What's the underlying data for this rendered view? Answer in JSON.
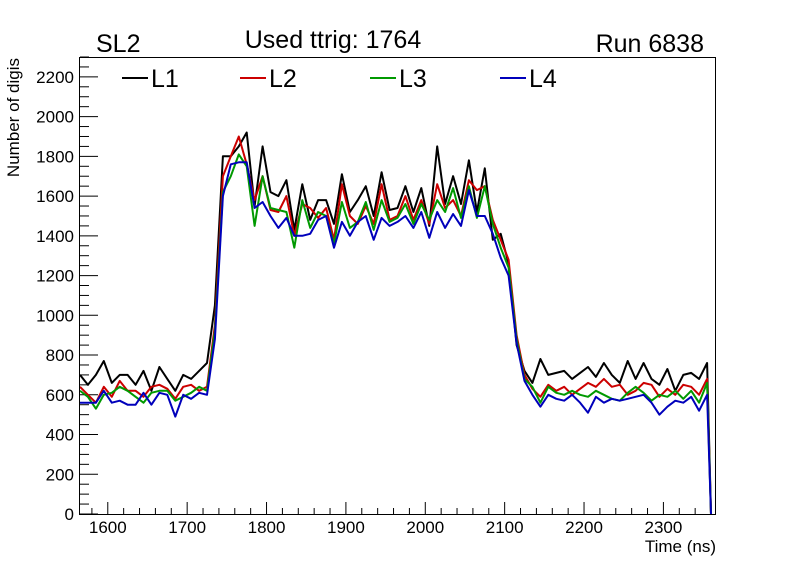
{
  "header": {
    "left": "SL2",
    "center": "Used ttrig: 1764",
    "right": "Run 6838"
  },
  "chart_data": {
    "type": "line",
    "xlabel": "Time (ns)",
    "ylabel": "Number of digis",
    "xlim": [
      1565,
      2365
    ],
    "ylim": [
      0,
      2300
    ],
    "xticks": [
      1600,
      1700,
      1800,
      1900,
      2000,
      2100,
      2200,
      2300
    ],
    "yticks": [
      0,
      200,
      400,
      600,
      800,
      1000,
      1200,
      1400,
      1600,
      1800,
      2000,
      2200
    ],
    "legend_position": "top-left",
    "grid": false,
    "x": [
      1565,
      1575,
      1585,
      1595,
      1605,
      1615,
      1625,
      1635,
      1645,
      1655,
      1665,
      1675,
      1685,
      1695,
      1705,
      1715,
      1725,
      1735,
      1745,
      1755,
      1765,
      1775,
      1785,
      1795,
      1805,
      1815,
      1825,
      1835,
      1845,
      1855,
      1865,
      1875,
      1885,
      1895,
      1905,
      1915,
      1925,
      1935,
      1945,
      1955,
      1965,
      1975,
      1985,
      1995,
      2005,
      2015,
      2025,
      2035,
      2045,
      2055,
      2065,
      2075,
      2085,
      2095,
      2105,
      2115,
      2125,
      2135,
      2145,
      2155,
      2165,
      2175,
      2185,
      2195,
      2205,
      2215,
      2225,
      2235,
      2245,
      2255,
      2265,
      2275,
      2285,
      2295,
      2305,
      2315,
      2325,
      2335,
      2345,
      2355,
      2360
    ],
    "series": [
      {
        "name": "L1",
        "color": "#000000",
        "values": [
          700,
          650,
          700,
          770,
          660,
          700,
          700,
          650,
          720,
          620,
          740,
          680,
          620,
          700,
          680,
          720,
          760,
          1050,
          1800,
          1800,
          1850,
          1920,
          1550,
          1850,
          1620,
          1600,
          1680,
          1430,
          1660,
          1480,
          1580,
          1580,
          1460,
          1710,
          1520,
          1580,
          1650,
          1500,
          1720,
          1530,
          1540,
          1650,
          1520,
          1640,
          1450,
          1850,
          1560,
          1700,
          1560,
          1780,
          1520,
          1740,
          1380,
          1410,
          1260,
          850,
          720,
          660,
          780,
          700,
          710,
          720,
          680,
          710,
          740,
          690,
          760,
          700,
          660,
          770,
          680,
          760,
          680,
          650,
          730,
          620,
          700,
          710,
          680,
          760,
          0
        ]
      },
      {
        "name": "L2",
        "color": "#cc0000",
        "values": [
          640,
          600,
          560,
          640,
          590,
          670,
          620,
          620,
          590,
          640,
          650,
          630,
          580,
          640,
          650,
          620,
          640,
          950,
          1700,
          1800,
          1900,
          1760,
          1580,
          1700,
          1530,
          1520,
          1600,
          1400,
          1560,
          1540,
          1490,
          1540,
          1380,
          1660,
          1500,
          1460,
          1550,
          1460,
          1660,
          1480,
          1500,
          1600,
          1480,
          1580,
          1460,
          1660,
          1540,
          1580,
          1500,
          1680,
          1630,
          1650,
          1480,
          1380,
          1280,
          900,
          700,
          630,
          590,
          650,
          620,
          640,
          600,
          630,
          660,
          640,
          680,
          640,
          650,
          600,
          620,
          660,
          650,
          590,
          630,
          600,
          650,
          640,
          600,
          680,
          0
        ]
      },
      {
        "name": "L3",
        "color": "#009900",
        "values": [
          620,
          590,
          530,
          600,
          610,
          640,
          620,
          590,
          560,
          610,
          620,
          620,
          570,
          590,
          610,
          640,
          620,
          920,
          1620,
          1700,
          1810,
          1750,
          1450,
          1700,
          1540,
          1530,
          1520,
          1340,
          1580,
          1440,
          1520,
          1500,
          1360,
          1570,
          1440,
          1470,
          1570,
          1430,
          1580,
          1470,
          1490,
          1560,
          1460,
          1560,
          1480,
          1580,
          1520,
          1640,
          1490,
          1650,
          1490,
          1650,
          1460,
          1340,
          1240,
          880,
          680,
          640,
          560,
          640,
          610,
          600,
          620,
          600,
          590,
          620,
          600,
          580,
          570,
          610,
          640,
          610,
          570,
          600,
          590,
          620,
          580,
          620,
          560,
          660,
          0
        ]
      },
      {
        "name": "L4",
        "color": "#0000bb",
        "values": [
          560,
          560,
          560,
          620,
          560,
          570,
          550,
          550,
          610,
          550,
          610,
          600,
          490,
          600,
          580,
          610,
          600,
          880,
          1600,
          1760,
          1770,
          1770,
          1540,
          1570,
          1500,
          1440,
          1490,
          1400,
          1400,
          1410,
          1480,
          1500,
          1340,
          1470,
          1400,
          1470,
          1500,
          1380,
          1490,
          1450,
          1470,
          1500,
          1440,
          1520,
          1390,
          1520,
          1440,
          1510,
          1450,
          1630,
          1500,
          1500,
          1410,
          1290,
          1200,
          860,
          670,
          600,
          540,
          600,
          580,
          570,
          600,
          560,
          510,
          590,
          560,
          580,
          570,
          580,
          590,
          600,
          560,
          500,
          540,
          570,
          560,
          590,
          520,
          600,
          0
        ]
      }
    ]
  }
}
